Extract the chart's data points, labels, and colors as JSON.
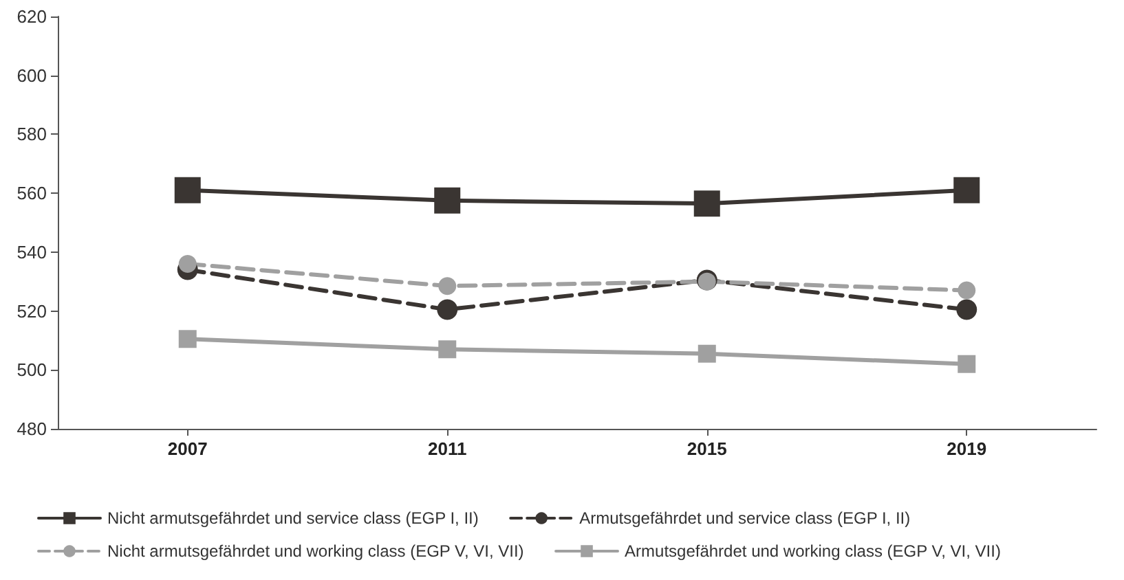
{
  "chart_data": {
    "type": "line",
    "categories": [
      "2007",
      "2011",
      "2015",
      "2019"
    ],
    "series": [
      {
        "name": "Nicht armutsgefährdet und service class (EGP I, II)",
        "color": "#3a3532",
        "marker": "square",
        "line_style": "solid",
        "values": [
          561,
          557.5,
          556.5,
          561
        ]
      },
      {
        "name": "Armutsgefährdet und service class (EGP I, II)",
        "color": "#3a3532",
        "marker": "circle",
        "line_style": "dashed",
        "values": [
          534,
          520.5,
          530.5,
          520.5
        ]
      },
      {
        "name": "Nicht armutsgefährdet und working class (EGP V, VI, VII)",
        "color": "#a0a0a0",
        "marker": "circle",
        "line_style": "dashed",
        "values": [
          536,
          528.5,
          530,
          527
        ]
      },
      {
        "name": "Armutsgefährdet und working class (EGP V, VI, VII)",
        "color": "#a0a0a0",
        "marker": "square",
        "line_style": "solid",
        "values": [
          510.5,
          507,
          505.5,
          502
        ]
      }
    ],
    "ylim": [
      480,
      620
    ],
    "yticks": [
      480,
      500,
      520,
      540,
      560,
      580,
      600,
      620
    ],
    "grid": false,
    "legend": "bottom"
  }
}
